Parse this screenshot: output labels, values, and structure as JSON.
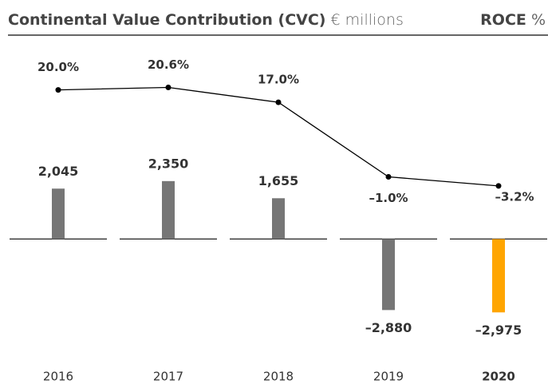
{
  "chart_data": {
    "type": "bar_line",
    "title": "Continental Value Contribution (CVC)",
    "title_unit": "€ millions",
    "right_title": "ROCE",
    "right_unit": "%",
    "categories": [
      "2016",
      "2017",
      "2018",
      "2019",
      "2020"
    ],
    "highlight": 4,
    "series": [
      {
        "name": "CVC",
        "type": "bar",
        "colors": [
          "#767676",
          "#767676",
          "#767676",
          "#767676",
          "#ffa500"
        ],
        "values": [
          2045,
          2350,
          1655,
          -2880,
          -2975
        ],
        "value_labels": [
          "2,045",
          "2,350",
          "1,655",
          "–2,880",
          "–2,975"
        ]
      },
      {
        "name": "ROCE",
        "type": "line",
        "axis": "y2",
        "color": "#000000",
        "values": [
          20.0,
          20.6,
          17.0,
          -1.0,
          -3.2
        ],
        "value_labels": [
          "20.0%",
          "20.6%",
          "17.0%",
          "–1.0%",
          "–3.2%"
        ]
      }
    ],
    "ylim": [
      -5200,
      8400
    ],
    "y2lim": [
      -47,
      34
    ]
  }
}
